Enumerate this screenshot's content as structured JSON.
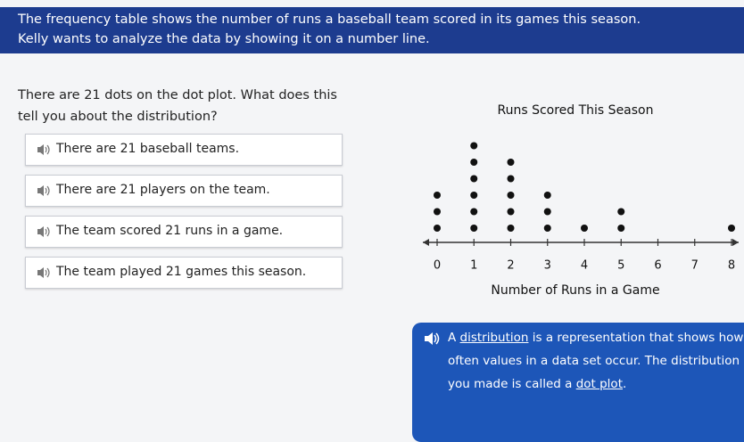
{
  "header": {
    "lines": [
      "The frequency table shows the number of runs a baseball team scored in its games this season.",
      "Kelly wants to analyze the data by showing it on a number line."
    ]
  },
  "question": "There are 21 dots on the dot plot. What does this tell you about the distribution?",
  "options": [
    "There are 21 baseball teams.",
    "There are 21 players on the team.",
    "The team scored 21 runs in a game.",
    "The team played 21 games this season."
  ],
  "chart_data": {
    "type": "dot",
    "title": "Runs Scored This Season",
    "x_label": "Number of Runs in a Game",
    "x": [
      0,
      1,
      2,
      3,
      4,
      5,
      6,
      7,
      8
    ],
    "values": [
      3,
      6,
      5,
      3,
      1,
      2,
      0,
      0,
      1
    ],
    "xlim": [
      0,
      8
    ],
    "xticks": [
      0,
      1,
      2,
      3,
      4,
      5,
      6,
      7,
      8
    ],
    "color": "#111111"
  },
  "callout": {
    "parts": [
      "A ",
      "distribution",
      " is a representation that shows how often values in a data set occur. The distribution you made is called a ",
      "dot plot",
      "."
    ]
  }
}
